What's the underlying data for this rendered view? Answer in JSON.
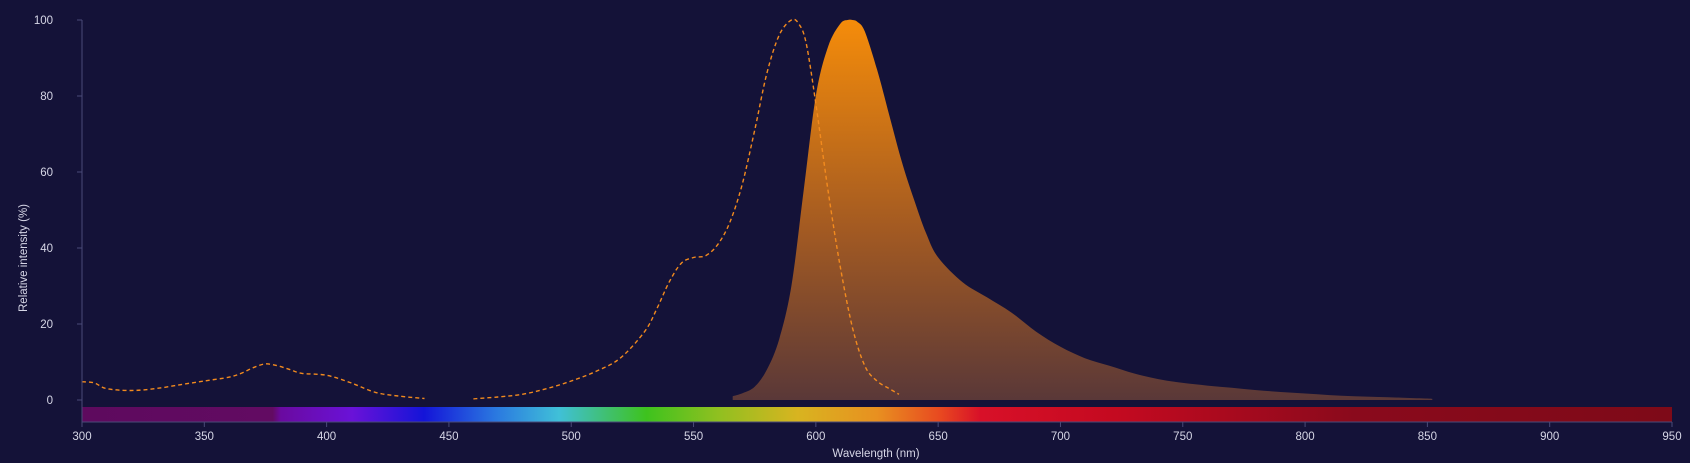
{
  "chart_data": {
    "type": "area",
    "xlabel": "Wavelength (nm)",
    "ylabel": "Relative intensity (%)",
    "xlim": [
      300,
      950
    ],
    "ylim": [
      0,
      100
    ],
    "x_ticks": [
      300,
      350,
      400,
      450,
      500,
      550,
      600,
      650,
      700,
      750,
      800,
      850,
      900,
      950
    ],
    "y_ticks": [
      0,
      20,
      40,
      60,
      80,
      100
    ],
    "grid": false,
    "legend": "none",
    "spectrum_bar": true,
    "series": [
      {
        "style": "dashed-line",
        "color": "#f28a1e",
        "x": [
          300,
          305,
          310,
          320,
          330,
          340,
          350,
          360,
          365,
          370,
          375,
          380,
          385,
          390,
          400,
          410,
          420,
          430,
          440,
          450,
          460,
          470,
          480,
          490,
          500,
          510,
          520,
          530,
          535,
          540,
          545,
          550,
          555,
          560,
          565,
          570,
          575,
          580,
          585,
          590,
          593,
          596,
          600,
          605,
          610,
          615,
          620,
          625,
          630,
          634
        ],
        "y": [
          4.8,
          4.5,
          3,
          2.5,
          3,
          4,
          5,
          6,
          7,
          8.5,
          9.5,
          9,
          8,
          7,
          6.5,
          4.5,
          2,
          1,
          0.4,
          0.2,
          0.3,
          0.8,
          1.5,
          3,
          5,
          7.5,
          11,
          18,
          24,
          31,
          36,
          37.5,
          38,
          41,
          47,
          57,
          71,
          86,
          96,
          100,
          99,
          94,
          78,
          55,
          35,
          19,
          9,
          5,
          3,
          1.5
        ]
      },
      {
        "style": "filled-area",
        "color": "#f28a10",
        "x": [
          566,
          570,
          575,
          580,
          585,
          590,
          595,
          600,
          605,
          610,
          613,
          615,
          617,
          620,
          625,
          630,
          635,
          640,
          645,
          650,
          660,
          670,
          680,
          690,
          700,
          710,
          720,
          730,
          740,
          750,
          760,
          770,
          780,
          790,
          800,
          810,
          820,
          830,
          840,
          850,
          852
        ],
        "y": [
          1,
          1.8,
          3.5,
          8,
          16,
          30,
          55,
          80,
          93,
          99,
          100,
          100,
          99.5,
          97,
          87,
          75,
          63,
          53,
          44,
          37.5,
          31,
          27,
          23,
          18,
          14,
          11,
          9,
          7,
          5.5,
          4.5,
          3.8,
          3.2,
          2.6,
          2.1,
          1.7,
          1.3,
          1,
          0.8,
          0.6,
          0.4,
          0.3
        ]
      }
    ]
  }
}
